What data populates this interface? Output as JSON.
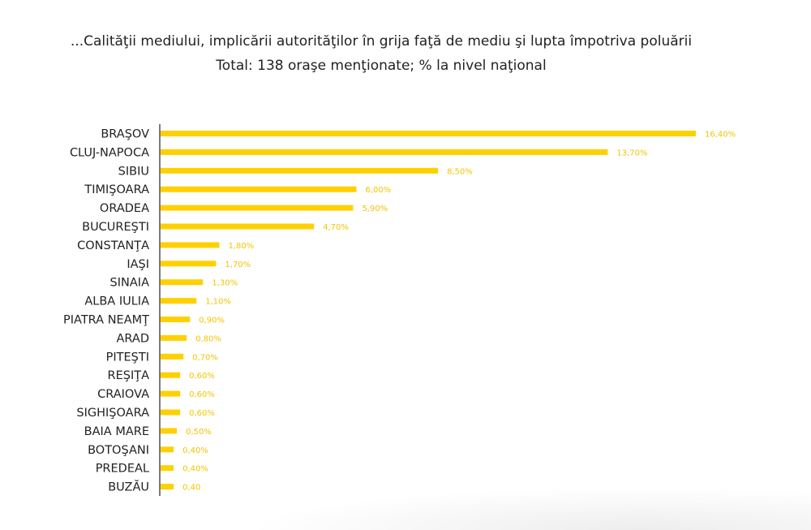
{
  "chart_data": {
    "type": "bar",
    "orientation": "horizontal",
    "title": "...Calităţii mediului, implicării autorităţilor în grija faţă de mediu şi lupta împotriva poluării",
    "subtitle": "Total: 138 oraşe menţionate; % la nivel naţional",
    "categories": [
      "BRAŞOV",
      "CLUJ-NAPOCA",
      "SIBIU",
      "TIMIŞOARA",
      "ORADEA",
      "BUCUREŞTI",
      "CONSTANŢA",
      "IAŞI",
      "SINAIA",
      "ALBA IULIA",
      "PIATRA NEAMŢ",
      "ARAD",
      "PITEŞTI",
      "REŞIŢA",
      "CRAIOVA",
      "SIGHIŞOARA",
      "BAIA MARE",
      "BOTOŞANI",
      "PREDEAL",
      "BUZĂU"
    ],
    "values": [
      16.4,
      13.7,
      8.5,
      6.0,
      5.9,
      4.7,
      1.8,
      1.7,
      1.3,
      1.1,
      0.9,
      0.8,
      0.7,
      0.6,
      0.6,
      0.6,
      0.5,
      0.4,
      0.4,
      0.4
    ],
    "value_labels": [
      "16,40%",
      "13,70%",
      "8,50%",
      "6,00%",
      "5,90%",
      "4,70%",
      "1,80%",
      "1,70%",
      "1,30%",
      "1,10%",
      "0,90%",
      "0,80%",
      "0,70%",
      "0,60%",
      "0,60%",
      "0,60%",
      "0,50%",
      "0,40%",
      "0,40%",
      "0,40"
    ],
    "xlim": [
      0,
      16.4
    ],
    "grid": false,
    "legend": "none",
    "bar_color": "#FFD000"
  }
}
